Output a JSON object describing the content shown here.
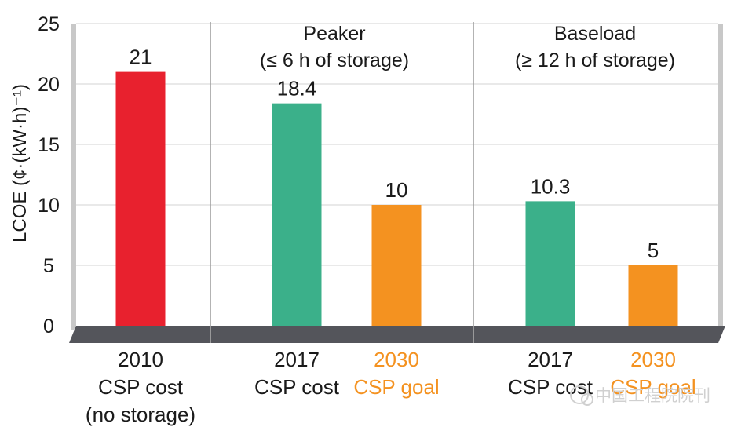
{
  "chart_data": {
    "type": "bar",
    "ylabel": "LCOE (¢·(kW·h)⁻¹)",
    "ylim": [
      0,
      25
    ],
    "yticks": [
      "0",
      "5",
      "10",
      "15",
      "20",
      "25"
    ],
    "grid": true,
    "groups": [
      {
        "title_line1": "",
        "title_line2": ""
      },
      {
        "title_line1": "Peaker",
        "title_line2": "(≤ 6 h of storage)"
      },
      {
        "title_line1": "Baseload",
        "title_line2": "(≥ 12 h of storage)"
      }
    ],
    "bars": [
      {
        "value": 21,
        "label": "21",
        "cat_line1": "2010",
        "cat_line2": "CSP cost",
        "cat_line3": "(no storage)",
        "color": "#e8212e",
        "text_color": "#1a1a1a"
      },
      {
        "value": 18.4,
        "label": "18.4",
        "cat_line1": "2017",
        "cat_line2": "CSP cost",
        "cat_line3": "",
        "color": "#3bb08a",
        "text_color": "#1a1a1a"
      },
      {
        "value": 10,
        "label": "10",
        "cat_line1": "2030",
        "cat_line2": "CSP goal",
        "cat_line3": "",
        "color": "#f49220",
        "text_color": "#f49220"
      },
      {
        "value": 10.3,
        "label": "10.3",
        "cat_line1": "2017",
        "cat_line2": "CSP cost",
        "cat_line3": "",
        "color": "#3bb08a",
        "text_color": "#1a1a1a"
      },
      {
        "value": 5,
        "label": "5",
        "cat_line1": "2030",
        "cat_line2": "CSP goal",
        "cat_line3": "",
        "color": "#f49220",
        "text_color": "#f49220"
      }
    ]
  },
  "watermark": "中国工程院院刊",
  "colors": {
    "floor": "#54555b",
    "axis": "#c8c8c8",
    "grid": "#e2e2e2"
  }
}
